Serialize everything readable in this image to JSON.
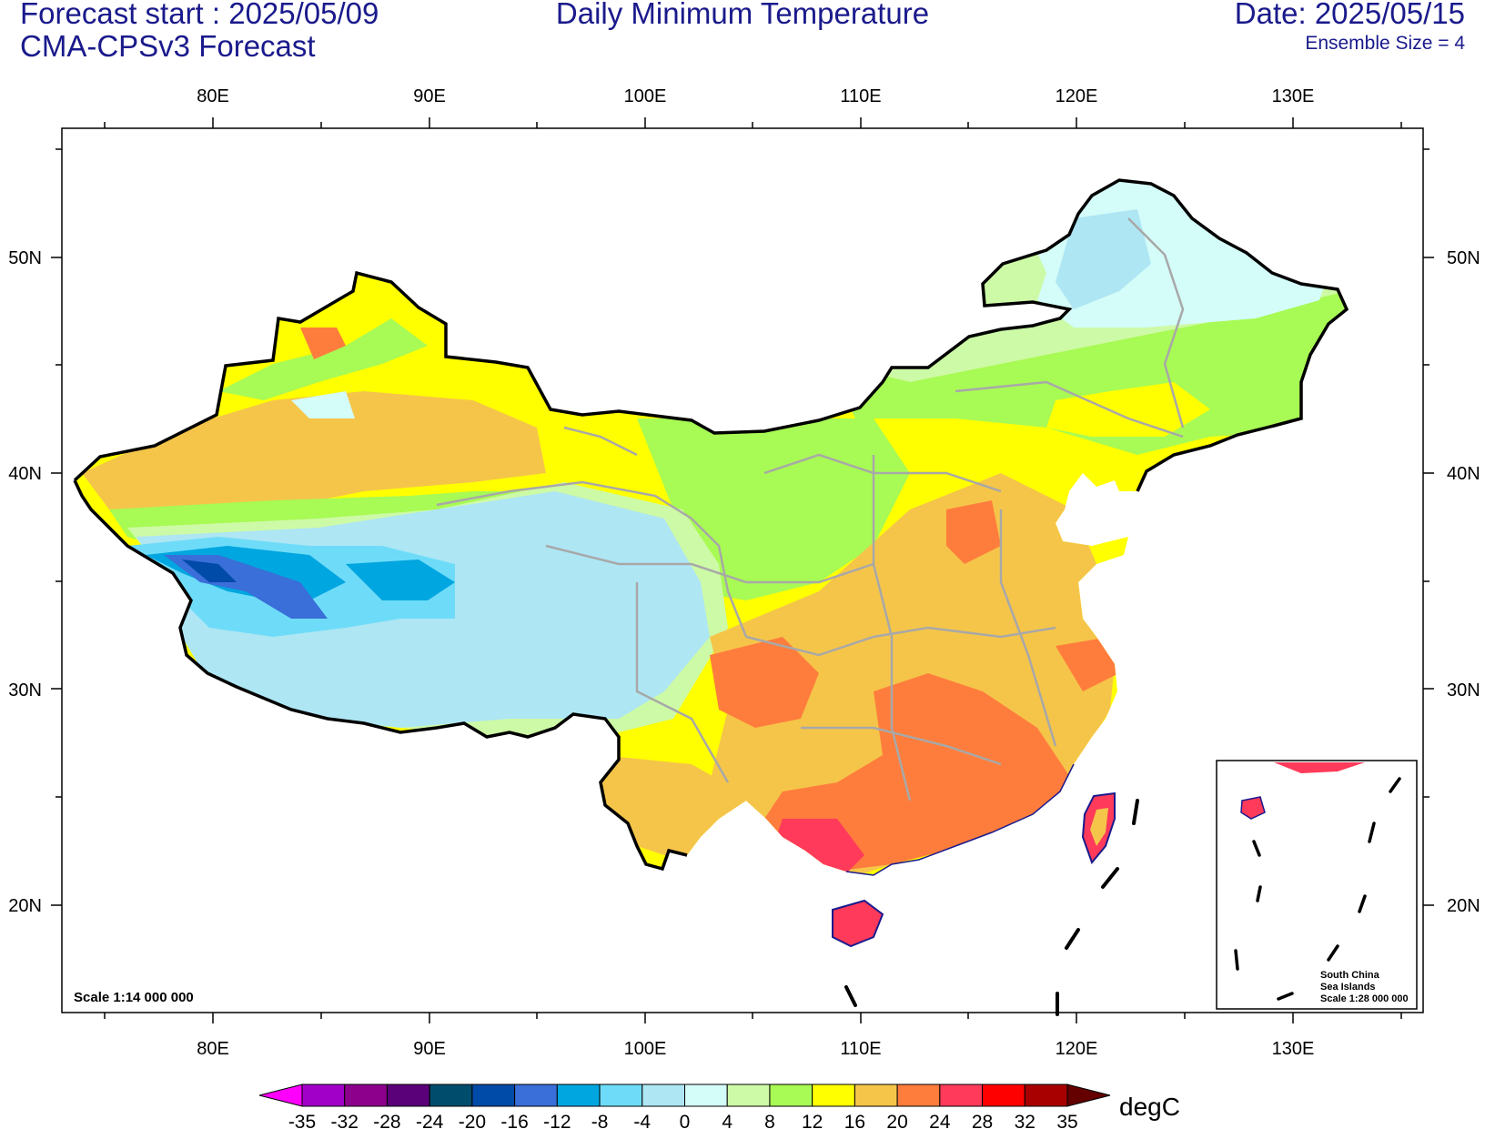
{
  "header": {
    "forecast_start": "Forecast start : 2025/05/09",
    "model": "CMA-CPSv3 Forecast",
    "title": "Daily Minimum Temperature",
    "date": "Date: 2025/05/15",
    "ensemble": "Ensemble Size = 4"
  },
  "axes": {
    "lon_labels": [
      "80E",
      "90E",
      "100E",
      "110E",
      "120E",
      "130E"
    ],
    "lat_labels": [
      "50N",
      "40N",
      "30N",
      "20N"
    ]
  },
  "map": {
    "scale": "Scale 1:14 000 000",
    "inset_lines": [
      "South China",
      "Sea Islands",
      "Scale 1:28 000 000"
    ]
  },
  "colorbar": {
    "unit": "degC",
    "labels": [
      "-35",
      "-32",
      "-28",
      "-24",
      "-20",
      "-16",
      "-12",
      "-8",
      "-4",
      "0",
      "4",
      "8",
      "12",
      "16",
      "20",
      "24",
      "28",
      "32",
      "35"
    ],
    "colors": [
      "#ff00ff",
      "#a000c8",
      "#8c008c",
      "#5a0078",
      "#004c6c",
      "#004aa8",
      "#3a6ed8",
      "#00a6e0",
      "#6edcf8",
      "#aee6f4",
      "#d4fcf8",
      "#cdfaa6",
      "#a8fa54",
      "#ffff00",
      "#f5c54a",
      "#ff7d3c",
      "#ff3a5a",
      "#ff0000",
      "#a80000",
      "#640000"
    ]
  }
}
